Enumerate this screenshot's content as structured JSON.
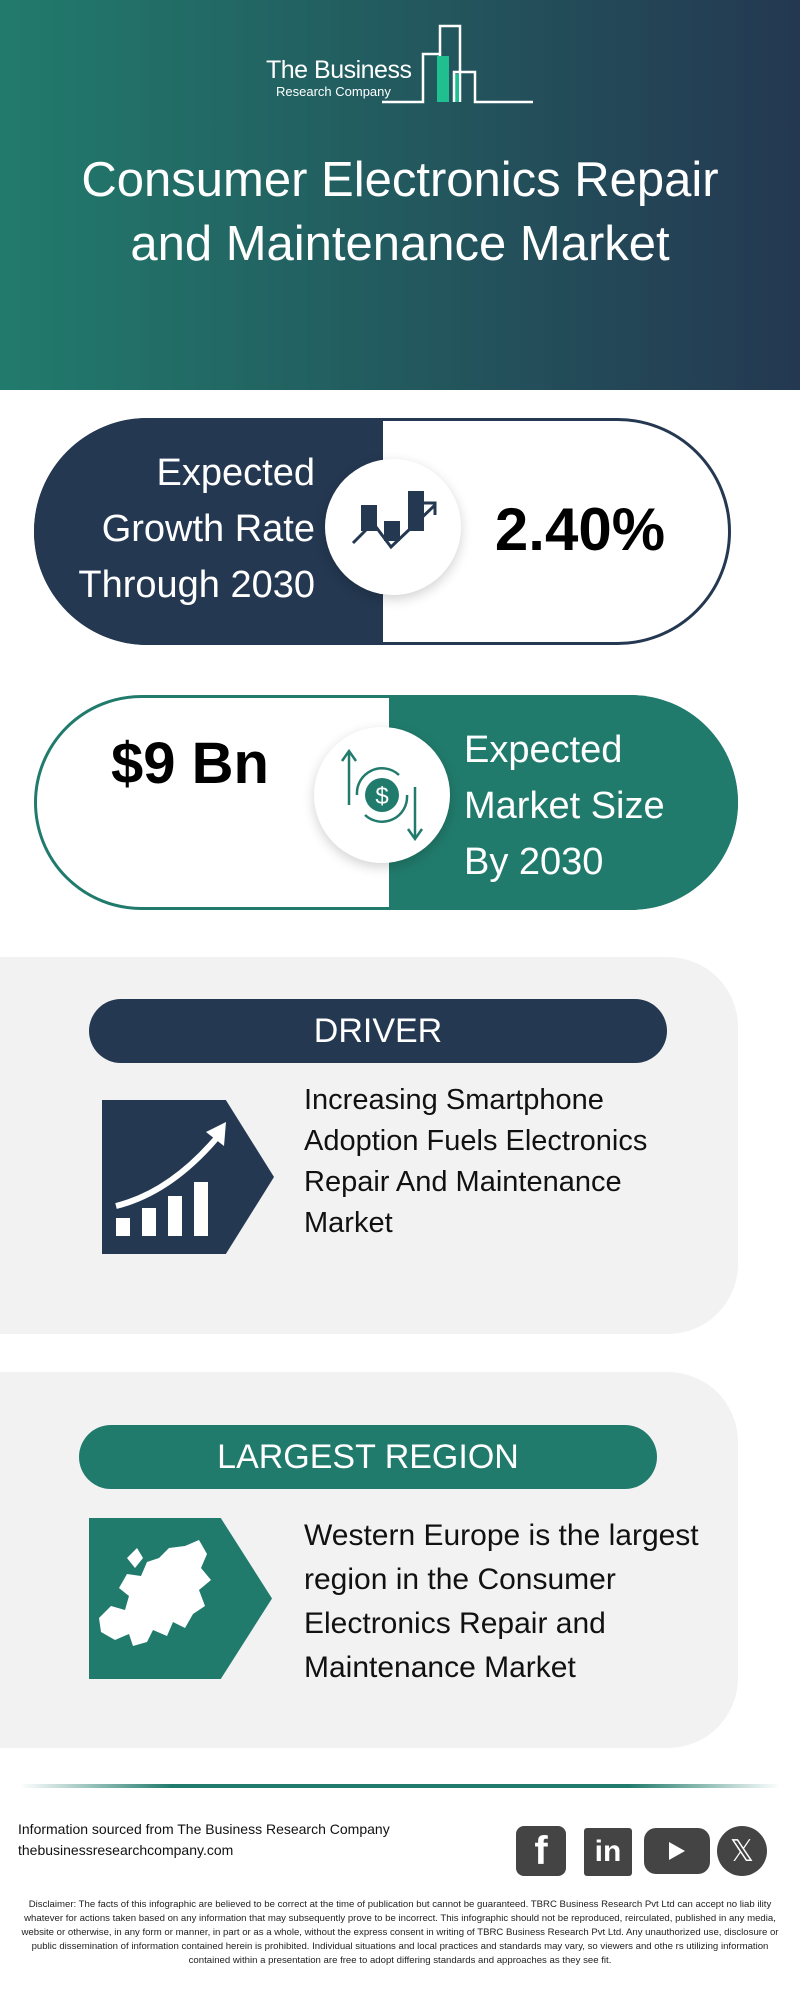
{
  "header": {
    "logo_line1": "The Business",
    "logo_line2": "Research Company",
    "title_line1": "Consumer Electronics Repair",
    "title_line2": "and Maintenance Market"
  },
  "growth": {
    "label_lines": [
      "Expected",
      "Growth Rate",
      "Through 2030"
    ],
    "value": "2.40%",
    "icon": "chart-growth-icon"
  },
  "market_size": {
    "value": "$9 Bn",
    "label_lines": [
      "Expected",
      "Market Size",
      "By 2030"
    ],
    "icon": "dollar-cycle-icon"
  },
  "driver": {
    "heading": "DRIVER",
    "text_lines": [
      "Increasing Smartphone",
      "Adoption Fuels Electronics",
      "Repair And Maintenance",
      "Market"
    ],
    "icon": "rising-bar-chart-icon"
  },
  "region": {
    "heading": "LARGEST REGION",
    "text_lines": [
      "Western Europe is the largest",
      "region in the Consumer",
      "Electronics Repair and",
      "Maintenance Market"
    ],
    "icon": "europe-map-icon"
  },
  "footer": {
    "source": "Information sourced from The Business Research Company",
    "website": "thebusinessresearchcompany.com",
    "social": [
      "facebook-icon",
      "linkedin-icon",
      "youtube-icon",
      "x-icon"
    ],
    "disclaimer": "Disclaimer: The facts of this infographic are believed to be correct at the time of publication but cannot be guaranteed. TBRC Business Research Pvt Ltd can accept no liab ility whatever for actions taken based on any information that may subsequently prove to be incorrect. This infographic should not be reproduced, reirculated, published in any media, website or otherwise, in any form or manner, in part or as a whole, without the express consent in writing of TBRC Business Research Pvt Ltd. Any unauthorized use, disclosure or public dissemination of information contained herein is prohibited. Individual situations and local practices and standards may vary, so viewers and othe rs utilizing information contained within a presentation are free to adopt differing standards and approaches as they see fit."
  },
  "colors": {
    "navy": "#243851",
    "teal": "#217b6c",
    "logo_accent": "#1fbf8f",
    "card_bg": "#f2f2f2"
  }
}
